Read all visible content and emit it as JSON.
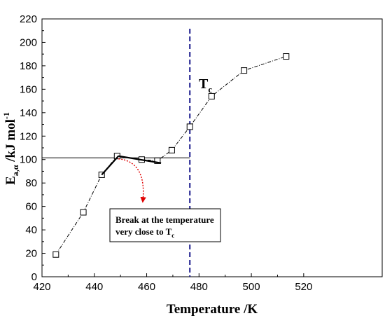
{
  "chart_data": {
    "type": "scatter",
    "xlabel": "Temperature /K",
    "ylabel_main": "E",
    "ylabel_sub": "a,α",
    "ylabel_rest": " /kJ mol",
    "ylabel_sup": "-1",
    "xlim": [
      420,
      550
    ],
    "ylim": [
      0,
      220
    ],
    "xticks": [
      420,
      440,
      460,
      480,
      500,
      520
    ],
    "yticks": [
      0,
      20,
      40,
      60,
      80,
      100,
      120,
      140,
      160,
      180,
      200,
      220
    ],
    "grid": false,
    "series": [
      {
        "style": "dash-dot line with open square markers",
        "x": [
          425.3,
          435.8,
          442.8,
          448.7,
          458.1,
          464.1,
          469.6,
          476.5,
          484.8,
          497.2,
          513.3
        ],
        "y": [
          19,
          55,
          87,
          103,
          100,
          99,
          108,
          128,
          154,
          176,
          188
        ]
      }
    ],
    "break_segments": [
      {
        "x": [
          442.8,
          449.2
        ],
        "y": [
          87,
          103
        ]
      },
      {
        "x": [
          449.2,
          465.5
        ],
        "y": [
          103,
          97
        ]
      }
    ],
    "reference_hline": {
      "y": 101.5,
      "x_from": 420,
      "x_to": 476.5,
      "color": "#000000"
    },
    "tc_line": {
      "x": 476.5,
      "label_main": "T",
      "label_sub": "c",
      "color": "#1a1a8c"
    },
    "annotation": {
      "line1": "Break at the temperature",
      "line2_main": "very close to T",
      "line2_sub": "c",
      "arrow_color": "#e00000",
      "arrow_from": {
        "x": 449.2,
        "y": 103
      },
      "arrow_to": {
        "x": 458.5,
        "y": 64
      }
    }
  }
}
